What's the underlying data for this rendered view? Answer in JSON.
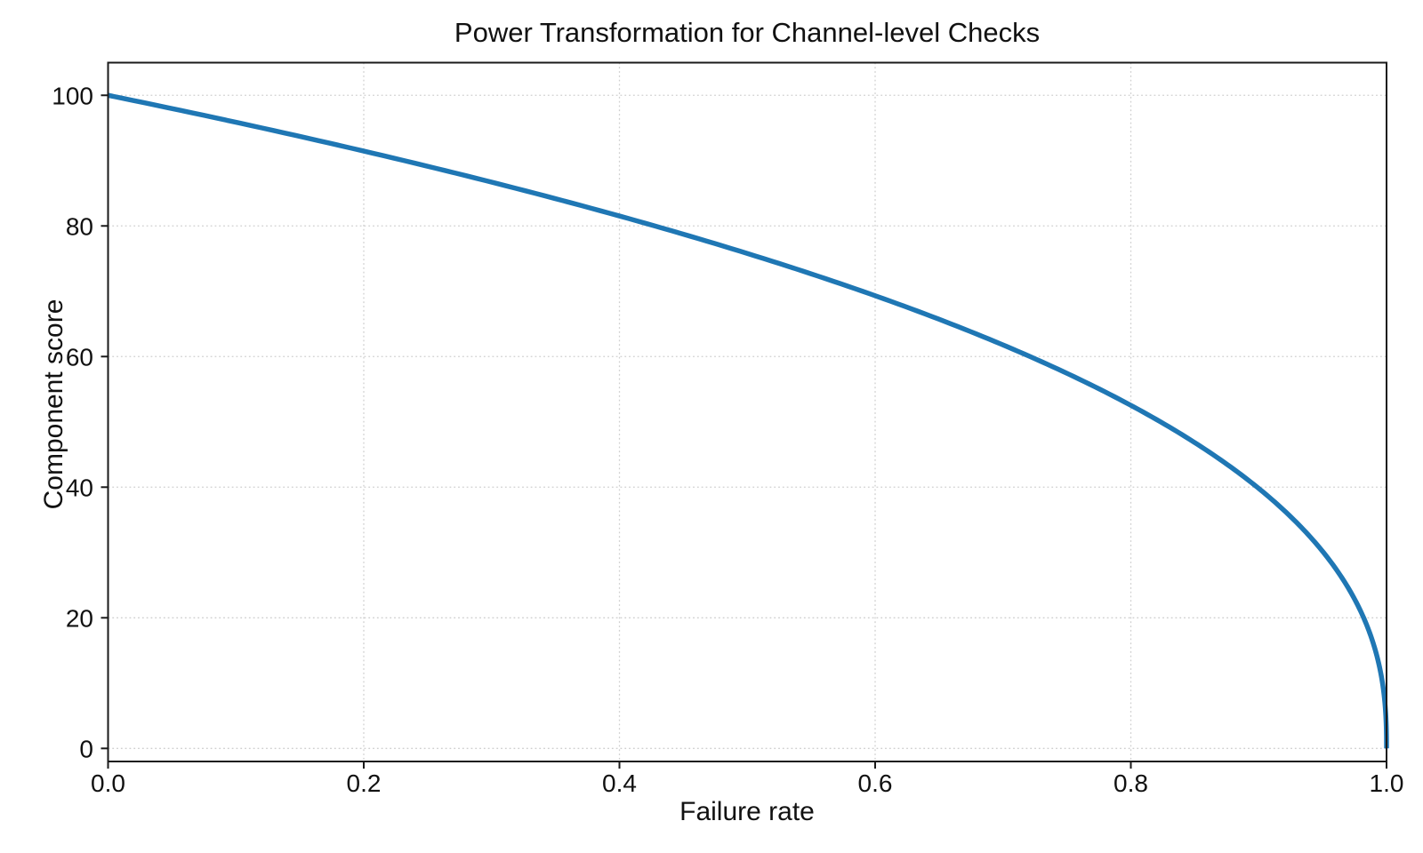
{
  "figure": {
    "background_color": "#ffffff",
    "text_color": "#111111",
    "spine_color": "#1a1a1a",
    "grid_color": "#cfcfcf"
  },
  "chart_data": {
    "type": "line",
    "title": "Power Transformation for Channel-level Checks",
    "xlabel": "Failure rate",
    "ylabel": "Component score",
    "xlim": [
      0.0,
      1.0
    ],
    "ylim": [
      -2,
      105
    ],
    "grid": {
      "visible": true,
      "style": "dotted",
      "color": "#cfcfcf"
    },
    "legend": {
      "visible": false
    },
    "xticks": {
      "values": [
        0.0,
        0.2,
        0.4,
        0.6,
        0.8,
        1.0
      ],
      "labels": [
        "0.0",
        "0.2",
        "0.4",
        "0.6",
        "0.8",
        "1.0"
      ]
    },
    "yticks": {
      "values": [
        0,
        20,
        40,
        60,
        80,
        100
      ],
      "labels": [
        "0",
        "20",
        "40",
        "60",
        "80",
        "100"
      ]
    },
    "series": [
      {
        "name": "component-score-curve",
        "color": "#1f77b4",
        "line_width": 5.5,
        "formula": "score = 100 * (1 - failure_rate)^0.4",
        "params": {
          "scale": 100,
          "exponent": 0.4
        },
        "points": [
          [
            0.0,
            100.0
          ],
          [
            0.05,
            98.0
          ],
          [
            0.1,
            95.9
          ],
          [
            0.15,
            93.7
          ],
          [
            0.2,
            91.5
          ],
          [
            0.25,
            89.1
          ],
          [
            0.3,
            86.7
          ],
          [
            0.35,
            84.2
          ],
          [
            0.4,
            81.5
          ],
          [
            0.45,
            78.7
          ],
          [
            0.5,
            75.8
          ],
          [
            0.55,
            72.7
          ],
          [
            0.6,
            69.3
          ],
          [
            0.65,
            65.7
          ],
          [
            0.7,
            61.8
          ],
          [
            0.75,
            57.4
          ],
          [
            0.8,
            52.5
          ],
          [
            0.85,
            46.8
          ],
          [
            0.9,
            39.8
          ],
          [
            0.95,
            30.2
          ],
          [
            0.98,
            20.9
          ],
          [
            0.99,
            15.8
          ],
          [
            1.0,
            0.0
          ]
        ]
      }
    ]
  }
}
